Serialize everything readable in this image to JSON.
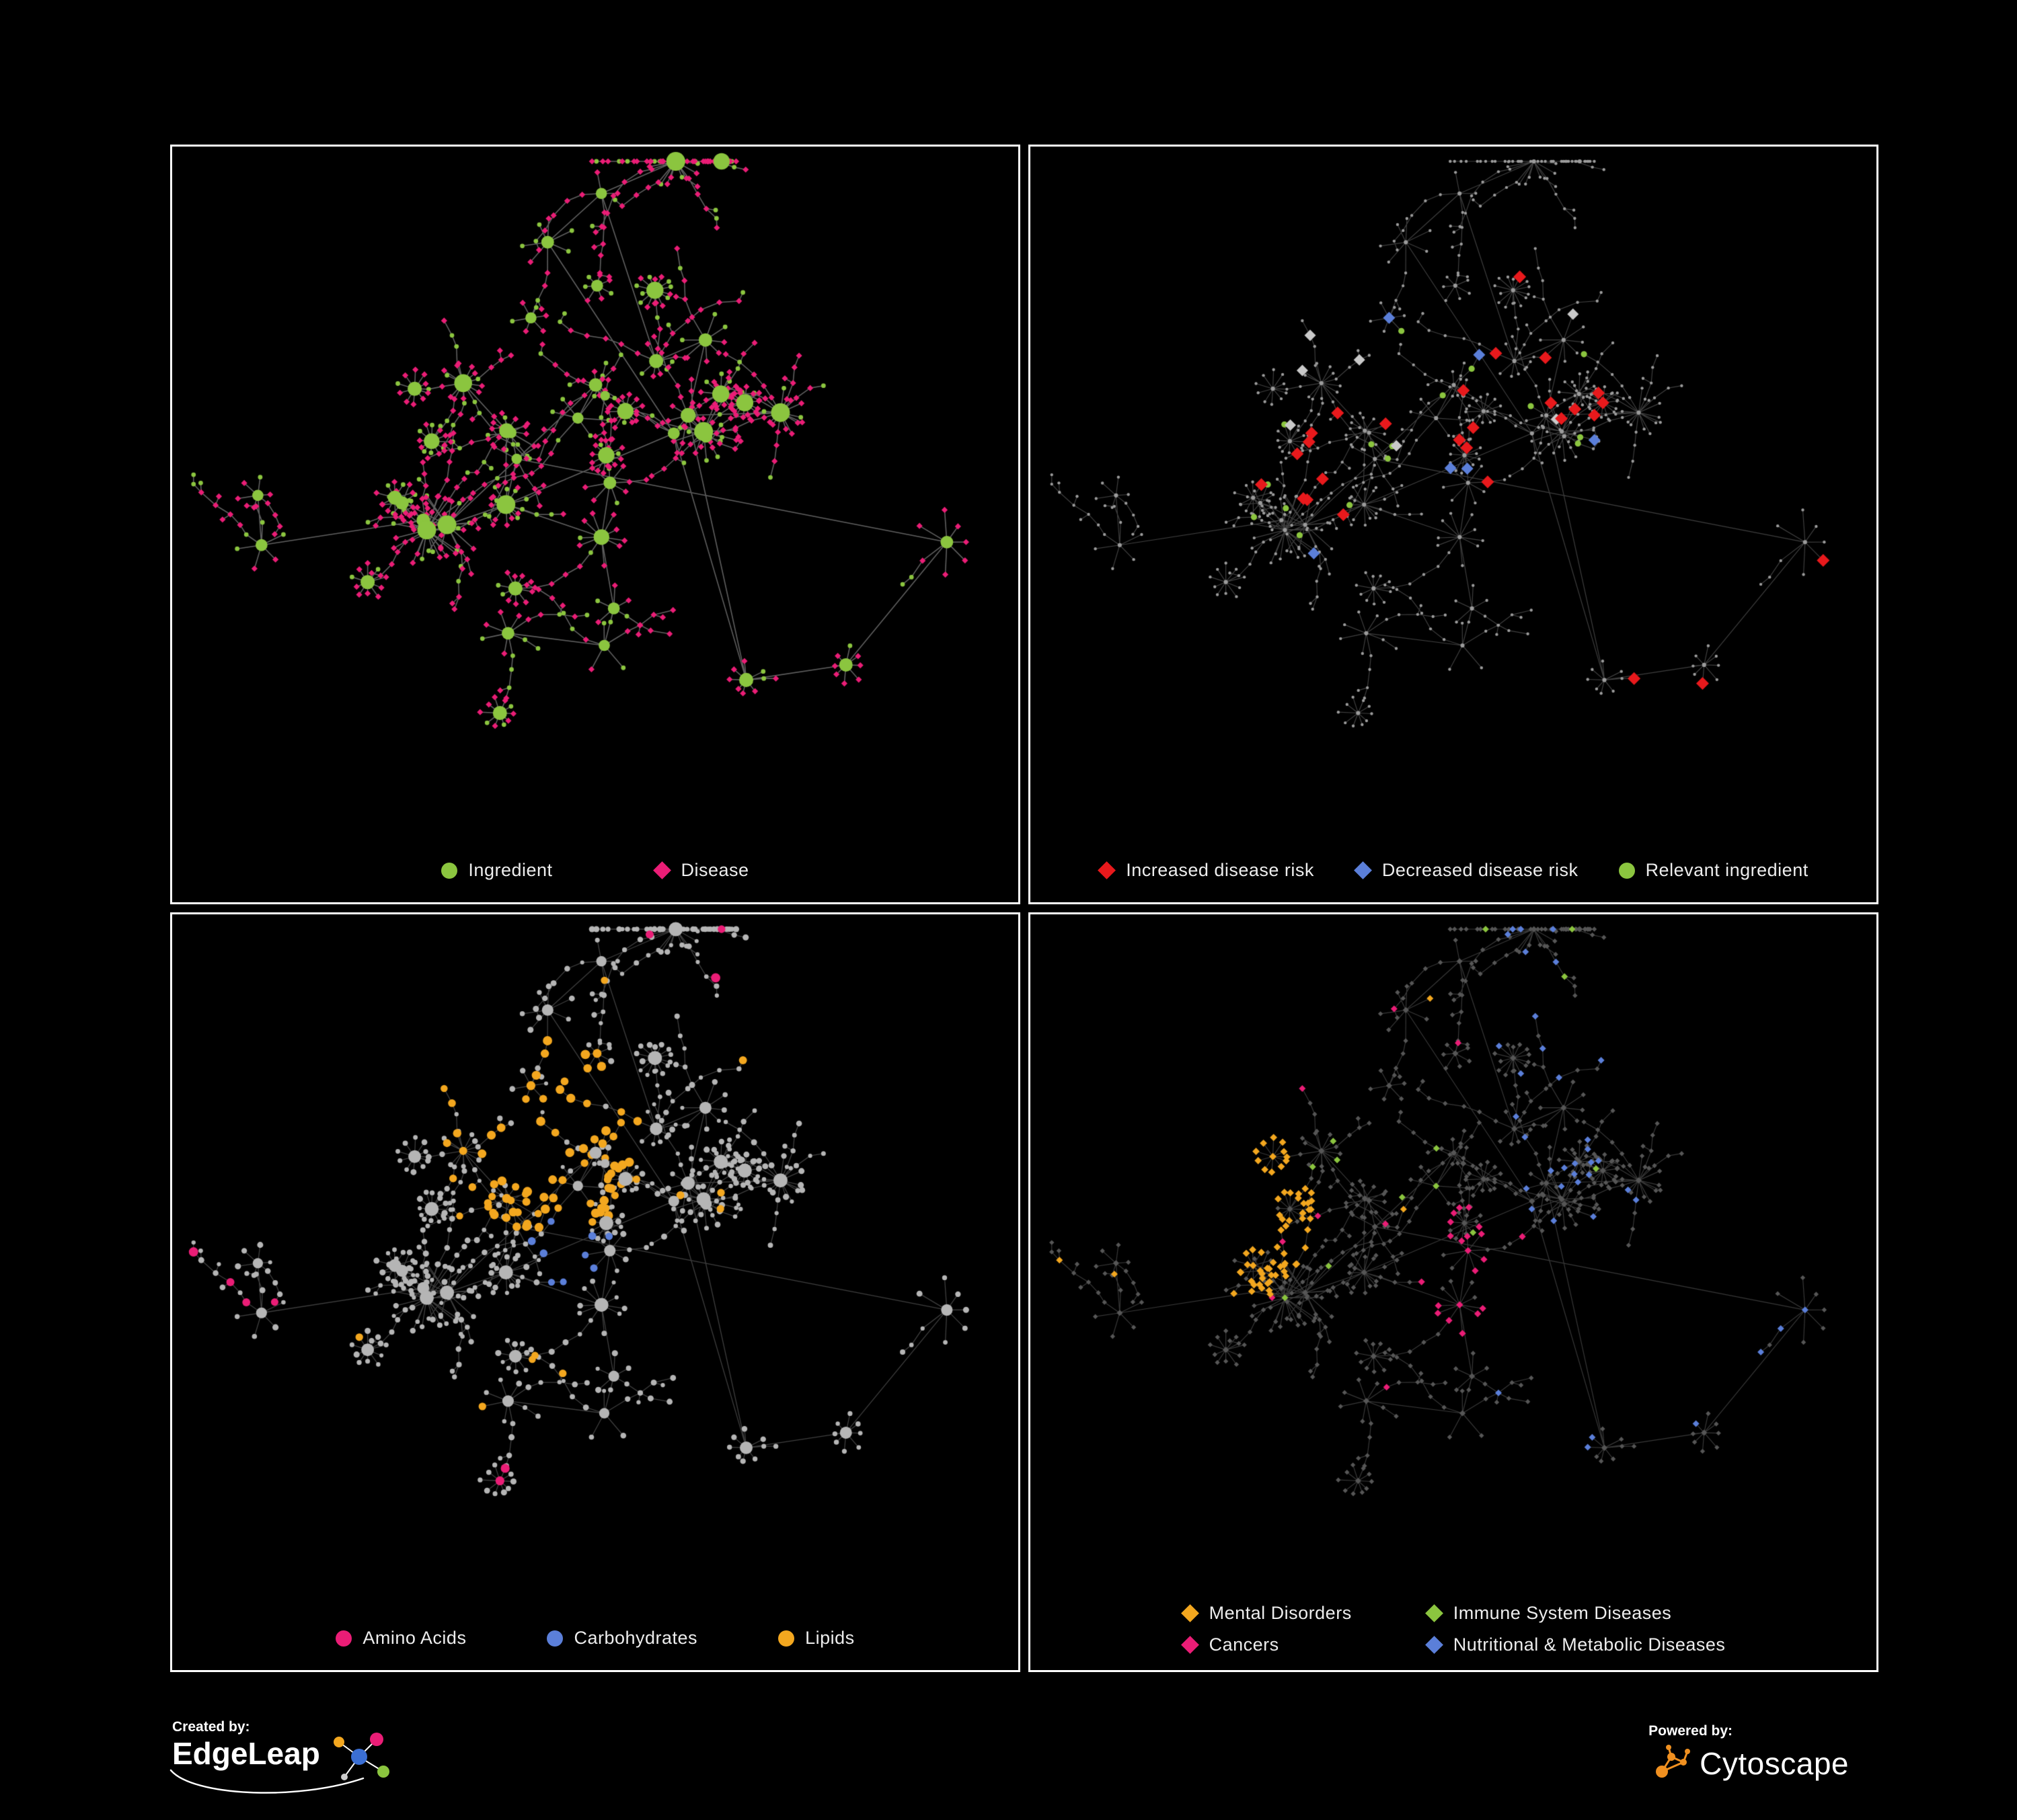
{
  "colors": {
    "background": "#000000",
    "panel_border": "#ffffff",
    "edge": "#8f8f8f",
    "gray_node": "#9b9b9b",
    "light_gray_node": "#b5b5b5",
    "dim_node": "#565656",
    "green": "#8bc53f",
    "pink": "#ea1d76",
    "red": "#e8191c",
    "blue": "#5b7fd9",
    "orange": "#f3a71f",
    "silver": "#c9c9c9",
    "cytoscape_orange": "#f09020"
  },
  "panels": [
    {
      "name": "ingredient-disease-network",
      "legend": [
        {
          "label": "Ingredient",
          "shape": "circle",
          "color": "#8bc53f"
        },
        {
          "label": "Disease",
          "shape": "diamond",
          "color": "#ea1d76"
        }
      ]
    },
    {
      "name": "disease-risk-network",
      "legend": [
        {
          "label": "Increased disease risk",
          "shape": "diamond",
          "color": "#e8191c"
        },
        {
          "label": "Decreased disease risk",
          "shape": "diamond",
          "color": "#5b7fd9"
        },
        {
          "label": "Relevant ingredient",
          "shape": "circle",
          "color": "#8bc53f"
        }
      ]
    },
    {
      "name": "nutrient-class-network",
      "legend": [
        {
          "label": "Amino Acids",
          "shape": "circle",
          "color": "#ea1d76"
        },
        {
          "label": "Carbohydrates",
          "shape": "circle",
          "color": "#5b7fd9"
        },
        {
          "label": "Lipids",
          "shape": "circle",
          "color": "#f3a71f"
        }
      ]
    },
    {
      "name": "disease-class-network",
      "legend": [
        {
          "label": "Mental Disorders",
          "shape": "diamond",
          "color": "#f3a71f"
        },
        {
          "label": "Immune System Diseases",
          "shape": "diamond",
          "color": "#8bc53f"
        },
        {
          "label": "Cancers",
          "shape": "diamond",
          "color": "#ea1d76"
        },
        {
          "label": "Nutritional & Metabolic Diseases",
          "shape": "diamond",
          "color": "#5b7fd9"
        }
      ]
    }
  ],
  "branding": {
    "created_by_label": "Created by:",
    "created_by_name": "EdgeLeap",
    "powered_by_label": "Powered by:",
    "powered_by_name": "Cytoscape"
  }
}
